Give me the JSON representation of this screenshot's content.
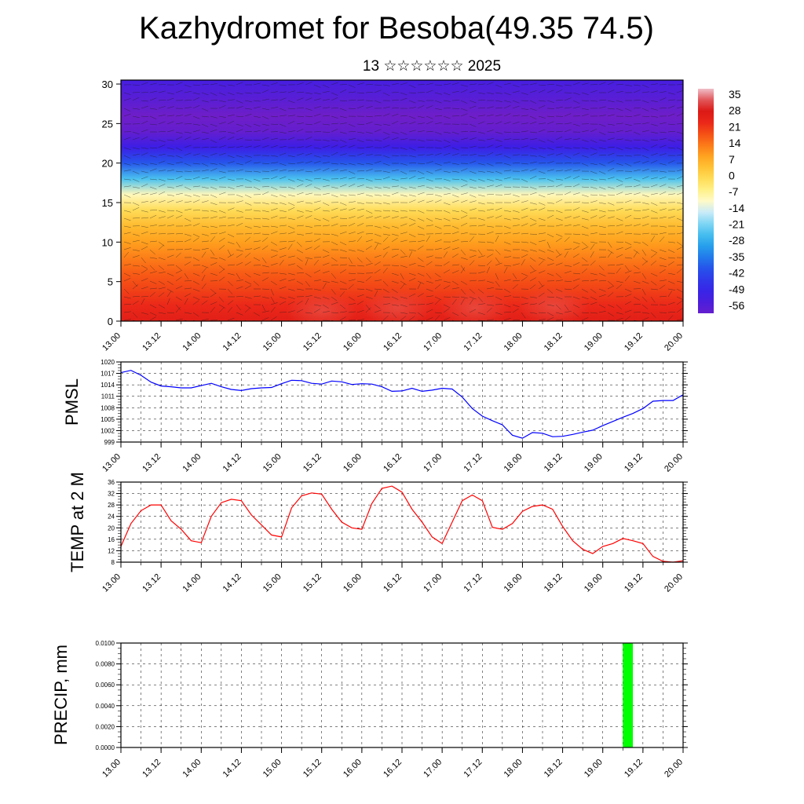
{
  "header": {
    "title": "Kazhydromet for Besoba(49.35 74.5)",
    "subtitle": "13 ☆☆☆☆☆☆ 2025"
  },
  "time_ticks": [
    "13.00",
    "13.12",
    "14.00",
    "14.12",
    "15.00",
    "15.12",
    "16.00",
    "16.12",
    "17.00",
    "17.12",
    "18.00",
    "18.12",
    "19.00",
    "19.12",
    "20.00"
  ],
  "chart_data": [
    {
      "type": "heatmap",
      "id": "vertical-temperature-section",
      "title": "",
      "xlabel": "",
      "ylabel": "",
      "x_ticks": [
        "13.00",
        "13.12",
        "14.00",
        "14.12",
        "15.00",
        "15.12",
        "16.00",
        "16.12",
        "17.00",
        "17.12",
        "18.00",
        "18.12",
        "19.00",
        "19.12",
        "20.00"
      ],
      "y_ticks": [
        0,
        5,
        10,
        15,
        20,
        25,
        30
      ],
      "ylim": [
        0,
        30.5
      ],
      "colorbar": {
        "labels": [
          "35",
          "28",
          "21",
          "14",
          "7",
          "0",
          "-7",
          "-14",
          "-21",
          "-28",
          "-35",
          "-42",
          "-49",
          "-56"
        ],
        "range": [
          -60,
          38
        ]
      },
      "temperature_profile": {
        "levels": [
          0,
          2,
          4,
          6,
          8,
          10,
          12,
          14,
          16,
          18,
          20,
          22,
          24,
          26,
          28,
          30.5
        ],
        "values": [
          26,
          23,
          20,
          17,
          13,
          9,
          5,
          -1,
          -10,
          -25,
          -40,
          -52,
          -60,
          -62,
          -58,
          -54
        ]
      },
      "wind_barbs": true,
      "grid": false
    },
    {
      "type": "line",
      "id": "pmsl",
      "ylabel": "PMSL",
      "y_ticks": [
        999,
        1002,
        1005,
        1008,
        1011,
        1014,
        1017,
        1020
      ],
      "ylim": [
        999,
        1020
      ],
      "grid": true,
      "series": [
        {
          "color": "#0000ff",
          "x_hours": [
            0,
            3,
            6,
            9,
            12,
            15,
            18,
            21,
            24,
            27,
            30,
            33,
            36,
            39,
            42,
            45,
            48,
            51,
            54,
            57,
            60,
            63,
            66,
            69,
            72,
            75,
            78,
            81,
            84,
            87,
            90,
            93,
            96,
            99,
            102,
            105,
            108,
            111,
            114,
            117,
            120,
            123,
            126,
            129,
            132,
            135,
            138,
            141,
            144,
            147,
            150,
            153,
            156,
            159,
            162,
            165,
            168
          ],
          "values": [
            1017.2,
            1017.8,
            1016.5,
            1014.7,
            1013.7,
            1013.5,
            1013.2,
            1013.2,
            1013.8,
            1014.4,
            1013.5,
            1012.8,
            1012.5,
            1013.0,
            1013.2,
            1013.3,
            1014.3,
            1015.2,
            1015.1,
            1014.4,
            1014.2,
            1015.0,
            1014.8,
            1014.1,
            1014.3,
            1014.2,
            1013.5,
            1012.3,
            1012.4,
            1013.1,
            1012.3,
            1012.6,
            1013.1,
            1012.9,
            1010.8,
            1007.8,
            1005.8,
            1004.6,
            1003.5,
            1000.8,
            1000.0,
            1001.5,
            1001.3,
            1000.4,
            1000.5,
            1001.0,
            1001.6,
            1002.1,
            1003.3,
            1004.4,
            1005.5,
            1006.5,
            1007.8,
            1009.7,
            1009.9,
            1009.9,
            1011.4
          ]
        }
      ]
    },
    {
      "type": "line",
      "id": "temp2m",
      "ylabel": "TEMP at 2 M",
      "y_ticks": [
        8,
        12,
        16,
        20,
        24,
        28,
        32,
        36
      ],
      "ylim": [
        8,
        36
      ],
      "grid": true,
      "series": [
        {
          "color": "#ff0000",
          "x_hours": [
            0,
            3,
            6,
            9,
            12,
            15,
            18,
            21,
            24,
            27,
            30,
            33,
            36,
            39,
            42,
            45,
            48,
            51,
            54,
            57,
            60,
            63,
            66,
            69,
            72,
            75,
            78,
            81,
            84,
            87,
            90,
            93,
            96,
            99,
            102,
            105,
            108,
            111,
            114,
            117,
            120,
            123,
            126,
            129,
            132,
            135,
            138,
            141,
            144,
            147,
            150,
            153,
            156,
            159,
            162,
            165,
            168
          ],
          "values": [
            13.5,
            21.5,
            26.0,
            28.0,
            28.0,
            22.5,
            19.5,
            15.5,
            14.8,
            24.0,
            28.8,
            30.0,
            29.5,
            24.5,
            21.0,
            17.5,
            16.8,
            27.0,
            31.2,
            32.2,
            31.8,
            26.5,
            22.0,
            20.0,
            19.5,
            28.5,
            33.8,
            34.6,
            32.5,
            26.5,
            22.0,
            16.8,
            14.5,
            22.0,
            29.5,
            31.5,
            29.5,
            20.2,
            19.5,
            21.5,
            25.8,
            27.5,
            28.0,
            26.5,
            20.5,
            15.5,
            12.5,
            11.0,
            13.5,
            14.5,
            16.3,
            15.5,
            14.5,
            10.0,
            8.3,
            8.0,
            8.5
          ]
        }
      ]
    },
    {
      "type": "bar",
      "id": "precip",
      "ylabel": "PRECIP, mm",
      "y_ticks": [
        "0.0000",
        "0.0020",
        "0.0040",
        "0.0060",
        "0.0080",
        "0.0100"
      ],
      "ylim": [
        0,
        0.01
      ],
      "grid": true,
      "bars": [
        {
          "x_start_hour": 150,
          "x_end_hour": 153,
          "value": 0.01,
          "color": "#00ff00"
        }
      ]
    }
  ]
}
